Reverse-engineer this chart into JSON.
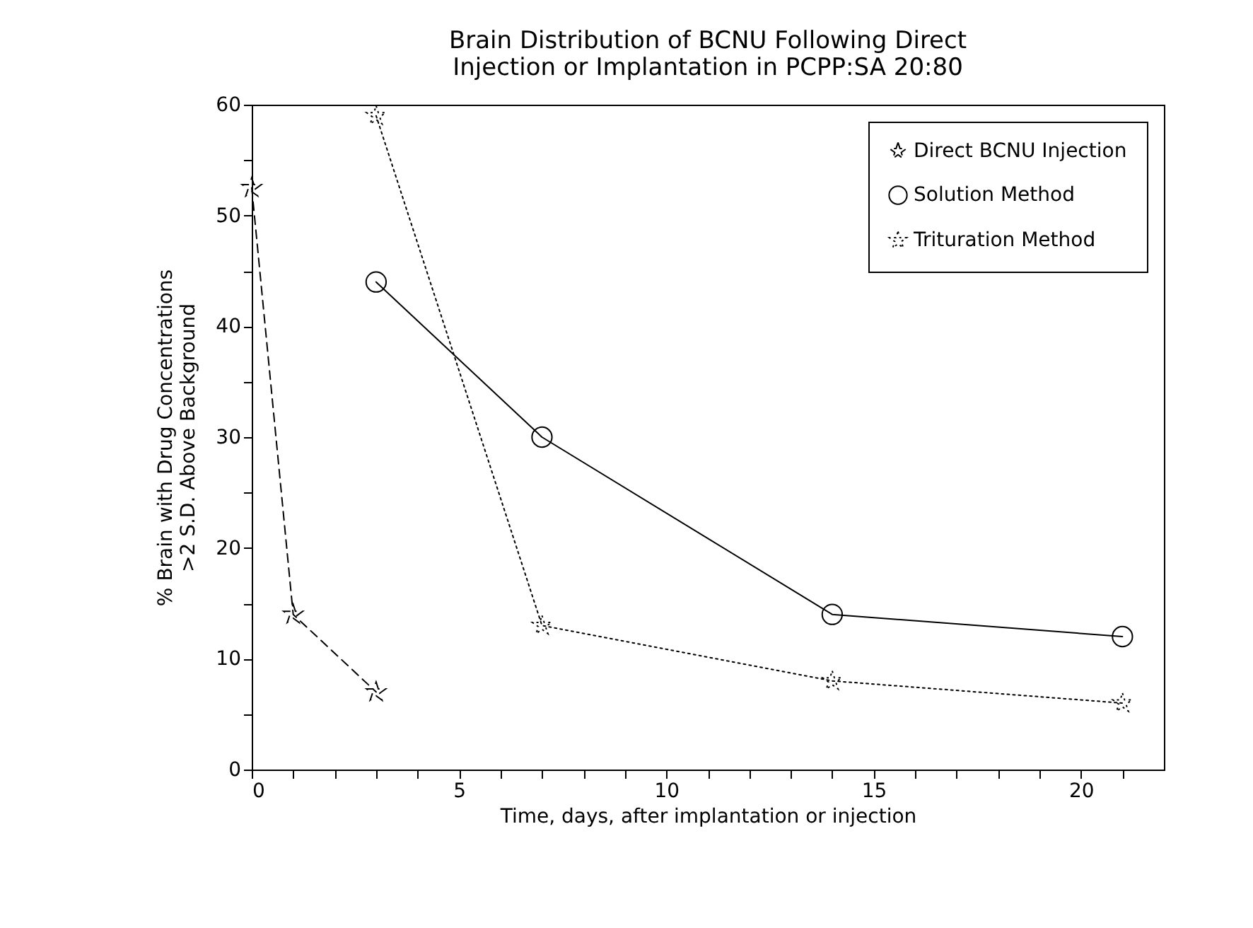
{
  "chart_data": {
    "type": "line",
    "title": [
      "Brain Distribution of BCNU Following Direct",
      "Injection or Implantation in PCPP:SA 20:80"
    ],
    "xlabel": "Time, days, after implantation or injection",
    "ylabel": [
      "% Brain with Drug Concentrations",
      ">2 S.D. Above Background"
    ],
    "series": [
      {
        "name": "Direct BCNU Injection",
        "color": "#000000",
        "marker": "star",
        "line_style": "dashed",
        "x": [
          0,
          1,
          3
        ],
        "values": [
          52.5,
          14,
          7
        ]
      },
      {
        "name": "Solution Method",
        "color": "#000000",
        "marker": "circle",
        "line_style": "solid",
        "x": [
          3,
          7,
          14,
          21
        ],
        "values": [
          44,
          30,
          14,
          12
        ]
      },
      {
        "name": "Trituration Method",
        "color": "#000000",
        "marker": "star",
        "line_style": "dotted",
        "x": [
          3,
          7,
          14,
          21
        ],
        "values": [
          59,
          13,
          8,
          6
        ]
      }
    ],
    "xlim": [
      0,
      22
    ],
    "ylim": [
      0,
      60
    ],
    "xticks": [
      0,
      {
        "value": 1,
        "label": null
      },
      {
        "value": 2,
        "label": null
      },
      {
        "value": 3,
        "label": null
      },
      {
        "value": 4,
        "label": null
      },
      5,
      {
        "value": 6,
        "label": null
      },
      {
        "value": 7,
        "label": null
      },
      {
        "value": 8,
        "label": null
      },
      {
        "value": 9,
        "label": null
      },
      10,
      {
        "value": 11,
        "label": null
      },
      {
        "value": 12,
        "label": null
      },
      {
        "value": 13,
        "label": null
      },
      {
        "value": 14,
        "label": null
      },
      15,
      {
        "value": 16,
        "label": null
      },
      {
        "value": 17,
        "label": null
      },
      {
        "value": 18,
        "label": null
      },
      {
        "value": 19,
        "label": null
      },
      20,
      {
        "value": 21,
        "label": null
      }
    ],
    "yticks": [
      0,
      {
        "value": 5,
        "label": null
      },
      10,
      {
        "value": 15,
        "label": null
      },
      20,
      {
        "value": 25,
        "label": null
      },
      30,
      {
        "value": 35,
        "label": null
      },
      40,
      {
        "value": 45,
        "label": null
      },
      50,
      {
        "value": 55,
        "label": null
      },
      60
    ],
    "legend": "top right",
    "grid": false
  }
}
